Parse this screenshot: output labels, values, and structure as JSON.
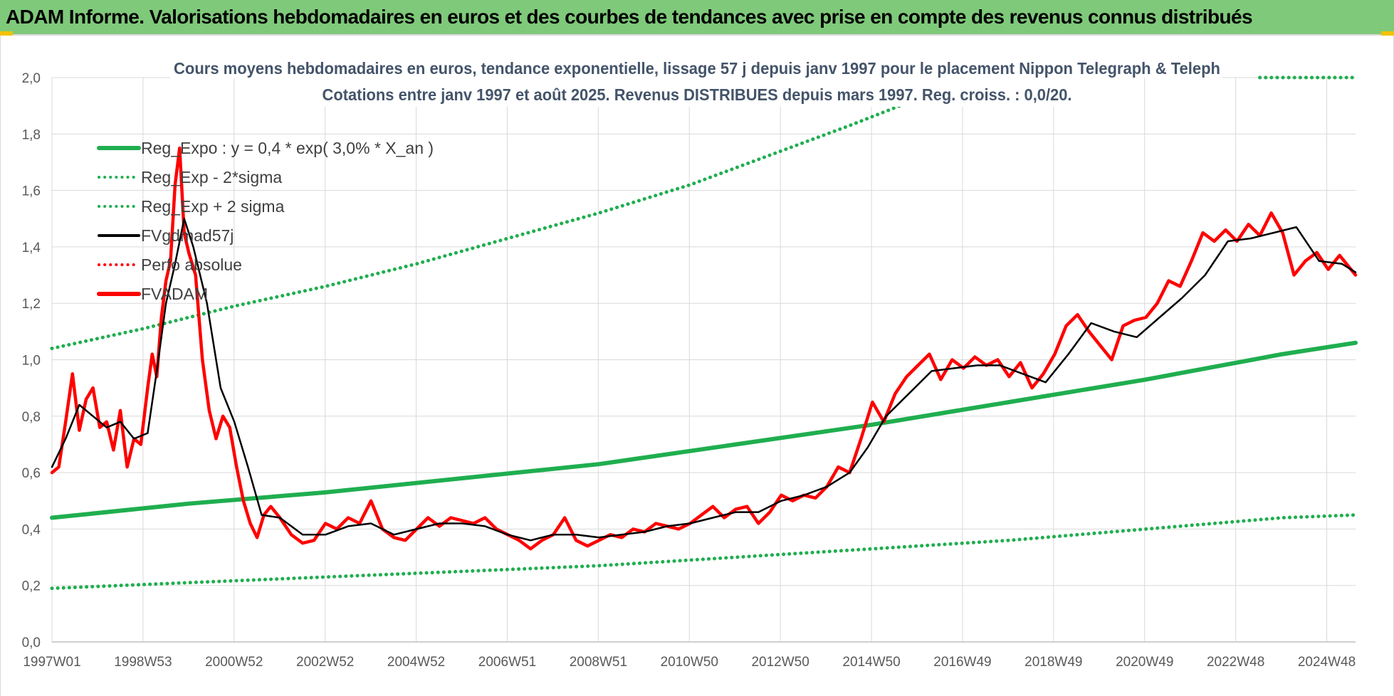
{
  "banner": {
    "title": "ADAM Informe. Valorisations hebdomadaires en euros et des courbes de tendances avec prise en compte des revenus connus distribués"
  },
  "colors": {
    "banner": "#7fc97a",
    "trend": "#1fae4f",
    "trend_band": "#1fae4f",
    "smoothed": "#000000",
    "perf": "#ff0000",
    "price": "#ff0000",
    "grid": "#d9d9d9",
    "title": "#44546a"
  },
  "chart_data": {
    "type": "line",
    "title_line1": "Cours moyens hebdomadaires en euros, tendance exponentielle, lissage 57 j depuis janv 1997 pour le placement Nippon Telegraph & Teleph",
    "title_line2": "Cotations entre janv 1997 et août 2025.  Revenus DISTRIBUES depuis mars 1997. Reg. croiss. : 0,0/20.",
    "xlabel": "",
    "ylabel": "",
    "x_range": [
      1997.0,
      2025.6
    ],
    "ylim": [
      0,
      2.0
    ],
    "y_ticks": [
      "0,0",
      "0,2",
      "0,4",
      "0,6",
      "0,8",
      "1,0",
      "1,2",
      "1,4",
      "1,6",
      "1,8",
      "2,0"
    ],
    "x_ticks": [
      "1997W01",
      "1998W53",
      "2000W52",
      "2002W52",
      "2004W52",
      "2006W51",
      "2008W51",
      "2010W50",
      "2012W50",
      "2014W50",
      "2016W49",
      "2018W49",
      "2020W49",
      "2022W48",
      "2024W48"
    ],
    "grid": true,
    "legend_position": "top-left",
    "legend": [
      {
        "label": "Reg_Expo : y = 0,4 * exp( 3,0% *  X_an )",
        "style": "solid-thick",
        "color": "#1fae4f"
      },
      {
        "label": "Reg_Exp - 2*sigma",
        "style": "dotted",
        "color": "#1fae4f"
      },
      {
        "label": "Reg_Exp + 2 sigma",
        "style": "dotted",
        "color": "#1fae4f"
      },
      {
        "label": "FVgdmad57j",
        "style": "solid",
        "color": "#000000"
      },
      {
        "label": "Perfo absolue",
        "style": "dotted",
        "color": "#ff0000"
      },
      {
        "label": "FVADAM",
        "style": "solid-thick",
        "color": "#ff0000"
      }
    ],
    "trend": {
      "name": "Reg_Expo",
      "x": [
        1997.0,
        2000.0,
        2003.0,
        2006.0,
        2009.0,
        2012.0,
        2015.0,
        2018.0,
        2021.0,
        2024.0,
        2025.6
      ],
      "y": [
        0.44,
        0.49,
        0.53,
        0.58,
        0.63,
        0.7,
        0.77,
        0.85,
        0.93,
        1.02,
        1.06
      ]
    },
    "band_lower": {
      "name": "Reg_Exp - 2*sigma",
      "x": [
        1997.0,
        2000.0,
        2003.0,
        2006.0,
        2009.0,
        2012.0,
        2015.0,
        2018.0,
        2021.0,
        2024.0,
        2025.6
      ],
      "y": [
        0.19,
        0.21,
        0.23,
        0.25,
        0.27,
        0.3,
        0.33,
        0.36,
        0.4,
        0.44,
        0.45
      ]
    },
    "band_upper": {
      "name": "Reg_Exp + 2 sigma",
      "x": [
        1997.0,
        1999.0,
        2001.0,
        2003.0,
        2005.0,
        2007.0,
        2009.0,
        2011.0,
        2013.0,
        2014.5,
        2015.6
      ],
      "y": [
        1.04,
        1.11,
        1.19,
        1.26,
        1.34,
        1.43,
        1.52,
        1.62,
        1.74,
        1.83,
        1.9
      ]
    },
    "band_upper_cap": {
      "x": [
        2023.5,
        2025.6
      ],
      "y": [
        2.0,
        2.0
      ]
    },
    "smoothed": {
      "name": "FVgdmad57j",
      "x": [
        1997.0,
        1997.3,
        1997.6,
        1997.9,
        1998.2,
        1998.5,
        1998.8,
        1999.1,
        1999.3,
        1999.5,
        1999.7,
        1999.9,
        2000.1,
        2000.4,
        2000.7,
        2001.0,
        2001.3,
        2001.6,
        2002.0,
        2002.5,
        2003.0,
        2003.5,
        2004.0,
        2004.5,
        2005.0,
        2005.5,
        2006.0,
        2006.5,
        2007.0,
        2007.5,
        2008.0,
        2008.5,
        2009.0,
        2009.5,
        2010.0,
        2010.5,
        2011.0,
        2011.5,
        2012.0,
        2012.5,
        2013.0,
        2013.5,
        2014.0,
        2014.5,
        2014.9,
        2015.3,
        2015.8,
        2016.3,
        2016.8,
        2017.3,
        2017.8,
        2018.3,
        2018.8,
        2019.3,
        2019.8,
        2020.3,
        2020.8,
        2021.3,
        2021.8,
        2022.3,
        2022.8,
        2023.3,
        2023.8,
        2024.3,
        2024.8,
        2025.3,
        2025.6
      ],
      "y": [
        0.62,
        0.72,
        0.84,
        0.8,
        0.76,
        0.78,
        0.72,
        0.74,
        0.96,
        1.2,
        1.34,
        1.5,
        1.4,
        1.2,
        0.9,
        0.78,
        0.62,
        0.45,
        0.44,
        0.38,
        0.38,
        0.41,
        0.42,
        0.38,
        0.4,
        0.42,
        0.42,
        0.41,
        0.38,
        0.36,
        0.38,
        0.38,
        0.37,
        0.38,
        0.39,
        0.41,
        0.42,
        0.44,
        0.46,
        0.46,
        0.5,
        0.52,
        0.55,
        0.6,
        0.69,
        0.8,
        0.88,
        0.96,
        0.97,
        0.98,
        0.98,
        0.95,
        0.92,
        1.02,
        1.13,
        1.1,
        1.08,
        1.15,
        1.22,
        1.3,
        1.42,
        1.43,
        1.45,
        1.47,
        1.35,
        1.34,
        1.31
      ]
    },
    "price": {
      "name": "FVADAM",
      "x": [
        1997.0,
        1997.15,
        1997.3,
        1997.45,
        1997.6,
        1997.75,
        1997.9,
        1998.05,
        1998.2,
        1998.35,
        1998.5,
        1998.65,
        1998.8,
        1998.95,
        1999.1,
        1999.2,
        1999.3,
        1999.4,
        1999.5,
        1999.6,
        1999.7,
        1999.8,
        1999.9,
        2000.0,
        2000.15,
        2000.3,
        2000.45,
        2000.6,
        2000.75,
        2000.9,
        2001.05,
        2001.2,
        2001.35,
        2001.5,
        2001.65,
        2001.8,
        2002.0,
        2002.25,
        2002.5,
        2002.75,
        2003.0,
        2003.25,
        2003.5,
        2003.75,
        2004.0,
        2004.25,
        2004.5,
        2004.75,
        2005.0,
        2005.25,
        2005.5,
        2005.75,
        2006.0,
        2006.25,
        2006.5,
        2006.75,
        2007.0,
        2007.25,
        2007.5,
        2007.75,
        2008.0,
        2008.25,
        2008.5,
        2008.75,
        2009.0,
        2009.25,
        2009.5,
        2009.75,
        2010.0,
        2010.25,
        2010.5,
        2010.75,
        2011.0,
        2011.25,
        2011.5,
        2011.75,
        2012.0,
        2012.25,
        2012.5,
        2012.75,
        2013.0,
        2013.25,
        2013.5,
        2013.75,
        2014.0,
        2014.25,
        2014.5,
        2014.75,
        2015.0,
        2015.25,
        2015.5,
        2015.75,
        2016.0,
        2016.25,
        2016.5,
        2016.75,
        2017.0,
        2017.25,
        2017.5,
        2017.75,
        2018.0,
        2018.25,
        2018.5,
        2018.75,
        2019.0,
        2019.25,
        2019.5,
        2019.75,
        2020.0,
        2020.25,
        2020.5,
        2020.75,
        2021.0,
        2021.25,
        2021.5,
        2021.75,
        2022.0,
        2022.25,
        2022.5,
        2022.75,
        2023.0,
        2023.25,
        2023.5,
        2023.75,
        2024.0,
        2024.25,
        2024.5,
        2024.75,
        2025.0,
        2025.25,
        2025.45,
        2025.6
      ],
      "y": [
        0.6,
        0.62,
        0.78,
        0.95,
        0.75,
        0.86,
        0.9,
        0.76,
        0.78,
        0.68,
        0.82,
        0.62,
        0.72,
        0.7,
        0.9,
        1.02,
        0.94,
        1.15,
        1.28,
        1.35,
        1.62,
        1.75,
        1.45,
        1.38,
        1.3,
        1.0,
        0.82,
        0.72,
        0.8,
        0.76,
        0.62,
        0.5,
        0.42,
        0.37,
        0.45,
        0.48,
        0.44,
        0.38,
        0.35,
        0.36,
        0.42,
        0.4,
        0.44,
        0.42,
        0.5,
        0.4,
        0.37,
        0.36,
        0.4,
        0.44,
        0.41,
        0.44,
        0.43,
        0.42,
        0.44,
        0.4,
        0.38,
        0.36,
        0.33,
        0.36,
        0.38,
        0.44,
        0.36,
        0.34,
        0.36,
        0.38,
        0.37,
        0.4,
        0.39,
        0.42,
        0.41,
        0.4,
        0.42,
        0.45,
        0.48,
        0.44,
        0.47,
        0.48,
        0.42,
        0.46,
        0.52,
        0.5,
        0.52,
        0.51,
        0.55,
        0.62,
        0.6,
        0.72,
        0.85,
        0.78,
        0.88,
        0.94,
        0.98,
        1.02,
        0.93,
        1.0,
        0.97,
        1.01,
        0.98,
        1.0,
        0.94,
        0.99,
        0.9,
        0.95,
        1.02,
        1.12,
        1.16,
        1.1,
        1.05,
        1.0,
        1.12,
        1.14,
        1.15,
        1.2,
        1.28,
        1.26,
        1.35,
        1.45,
        1.42,
        1.46,
        1.42,
        1.48,
        1.44,
        1.52,
        1.45,
        1.3,
        1.35,
        1.38,
        1.32,
        1.37,
        1.33,
        1.3
      ]
    }
  }
}
